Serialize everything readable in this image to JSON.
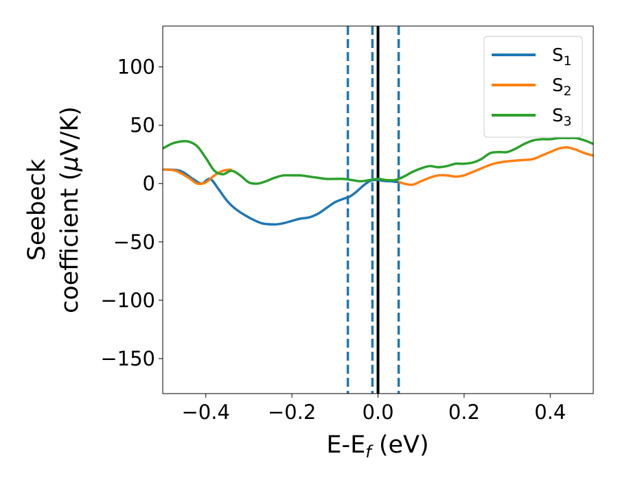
{
  "chart_data": {
    "type": "line",
    "xlabel": "E-E",
    "xlabel_sub": "f",
    "xlabel_unit": " (eV)",
    "ylabel_line1": "Seebeck",
    "ylabel_line2": "coefficient  (",
    "ylabel_mu": "μ",
    "ylabel_unit": "V/K)",
    "xlim": [
      -0.5,
      0.5
    ],
    "ylim": [
      -180,
      135
    ],
    "xticks": [
      -0.4,
      -0.2,
      0.0,
      0.2,
      0.4
    ],
    "xtick_labels": [
      "−0.4",
      "−0.2",
      "0.0",
      "0.2",
      "0.4"
    ],
    "yticks": [
      100,
      50,
      0,
      -50,
      -100,
      -150
    ],
    "ytick_labels": [
      "100",
      "50",
      "0",
      "−50",
      "−100",
      "−150"
    ],
    "legend_position": "top-right",
    "vlines": [
      {
        "x": -0.07,
        "style": "dashed",
        "color": "#1f77b4"
      },
      {
        "x": -0.013,
        "style": "dashed",
        "color": "#1f77b4"
      },
      {
        "x": 0.048,
        "style": "dashed",
        "color": "#1f77b4"
      },
      {
        "x": 0.0,
        "style": "solid",
        "color": "#000000"
      }
    ],
    "series": [
      {
        "name": "S",
        "sub": "1",
        "color": "#1f77b4",
        "x": [
          -0.5,
          -0.46,
          -0.43,
          -0.41,
          -0.39,
          -0.37,
          -0.35,
          -0.33,
          -0.3,
          -0.27,
          -0.24,
          -0.22,
          -0.2,
          -0.18,
          -0.16,
          -0.14,
          -0.12,
          -0.1,
          -0.08,
          -0.065,
          -0.05,
          -0.035,
          -0.02,
          -0.01,
          0.0,
          0.01,
          0.02,
          0.03,
          0.04,
          0.048
        ],
        "y": [
          12,
          11,
          4,
          0,
          4,
          -5,
          -15,
          -22,
          -29,
          -34,
          -35,
          -34,
          -32,
          -30,
          -29,
          -26,
          -21,
          -16,
          -13,
          -11,
          -7,
          -2,
          2,
          3,
          3,
          2.5,
          2,
          2,
          1.5,
          1.5
        ]
      },
      {
        "name": "S",
        "sub": "2",
        "color": "#ff7f0e",
        "x": [
          -0.5,
          -0.47,
          -0.44,
          -0.42,
          -0.4,
          -0.38,
          -0.36,
          -0.34,
          0.048,
          0.06,
          0.08,
          0.1,
          0.12,
          0.14,
          0.16,
          0.18,
          0.2,
          0.22,
          0.24,
          0.26,
          0.28,
          0.3,
          0.33,
          0.36,
          0.38,
          0.4,
          0.42,
          0.44,
          0.46,
          0.48,
          0.5
        ],
        "y": [
          12,
          11,
          5,
          0,
          1,
          7,
          11,
          12,
          1.5,
          0,
          -1,
          2,
          5,
          7,
          7,
          6,
          7,
          10,
          13,
          16,
          18,
          19,
          20,
          21,
          24,
          27,
          30,
          31,
          29,
          26,
          24
        ]
      },
      {
        "name": "S",
        "sub": "3",
        "color": "#2ca02c",
        "x": [
          -0.5,
          -0.48,
          -0.46,
          -0.44,
          -0.42,
          -0.4,
          -0.38,
          -0.36,
          -0.34,
          -0.32,
          -0.3,
          -0.28,
          -0.26,
          -0.24,
          -0.22,
          -0.2,
          -0.18,
          -0.16,
          -0.14,
          -0.12,
          -0.1,
          -0.08,
          -0.06,
          -0.04,
          -0.02,
          0.0,
          0.02,
          0.04,
          0.06,
          0.08,
          0.1,
          0.12,
          0.14,
          0.16,
          0.18,
          0.2,
          0.22,
          0.24,
          0.26,
          0.28,
          0.3,
          0.32,
          0.34,
          0.36,
          0.38,
          0.4,
          0.42,
          0.44,
          0.46,
          0.48,
          0.5
        ],
        "y": [
          30,
          34,
          36,
          36,
          32,
          22,
          11,
          8,
          11,
          7,
          1,
          0,
          2,
          5,
          7,
          7,
          7,
          6,
          5,
          4,
          4,
          4,
          3,
          2,
          3,
          4,
          3,
          3,
          6,
          10,
          13,
          15,
          14,
          15,
          17,
          17,
          18,
          21,
          26,
          27,
          27,
          30,
          34,
          37,
          38,
          38,
          39,
          39,
          39,
          37,
          34
        ]
      }
    ]
  }
}
